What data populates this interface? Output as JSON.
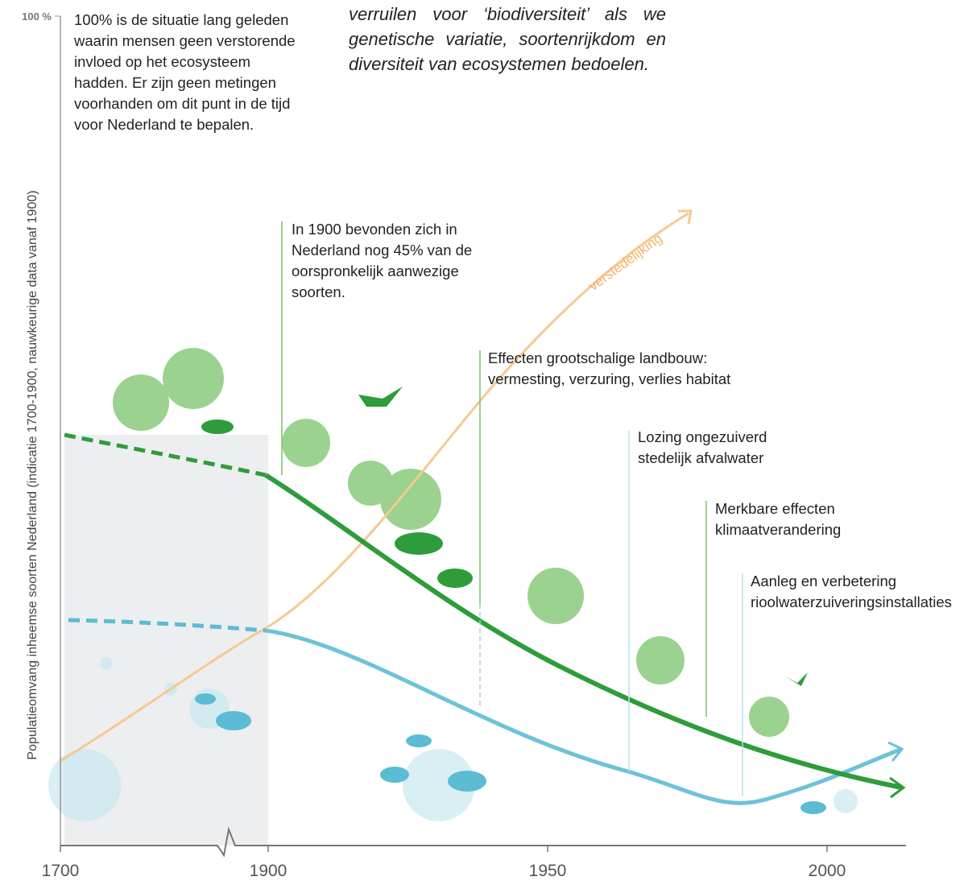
{
  "intro": "verruilen voor ‘biodiversiteit’ als we genetische variatie, soortenrijkdom en diversiteit van ecosystemen bedoelen.",
  "axes": {
    "ylabel": "Populatieomvang inheemse soorten Nederland  (indicatie 1700-1900, nauwkeurige data vanaf 1900)",
    "yticks": [
      {
        "value": 100,
        "label": "100 %"
      }
    ],
    "xticks": [
      1700,
      1900,
      1950,
      2000
    ]
  },
  "curve_label": "verstedelijking",
  "annotations": [
    "100% is de situatie lang geleden waarin mensen geen verstorende invloed op het ecosysteem hadden. Er zijn geen metingen voorhanden om dit punt in de tijd voor Nederland te bepalen.",
    "In 1900 bevonden zich in Nederland nog 45% van de oorspronkelijk aanwezige soorten.",
    "Effecten grootschalige landbouw: vermesting, verzuring, verlies habitat",
    "Lozing ongezuiverd stedelijk afvalwater",
    "Merkbare effecten klimaatverandering",
    "Aanleg en verbetering rioolwaterzuiveringsinstallaties"
  ]
}
